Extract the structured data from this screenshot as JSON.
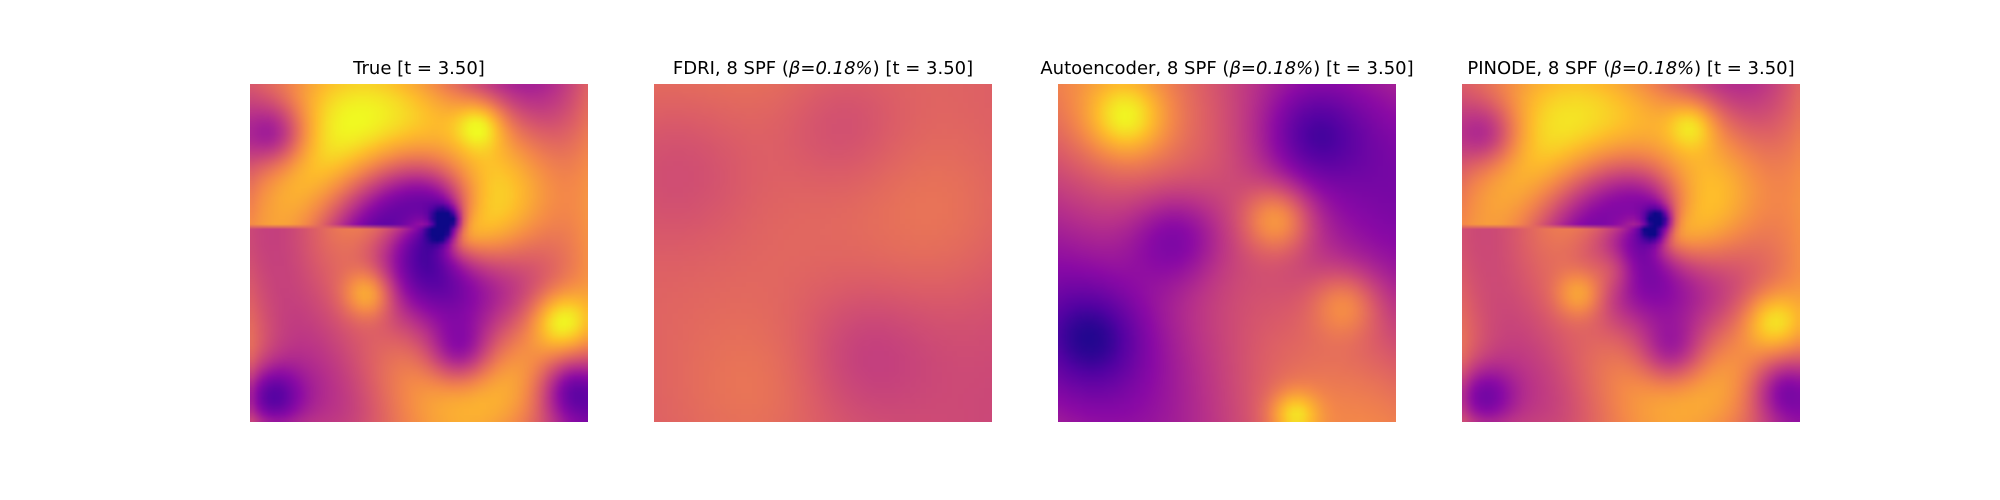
{
  "colormap": "plasma",
  "panels": [
    {
      "title_prefix": "True [t = 3.50]",
      "beta_text": "",
      "title_suffix": "",
      "field": "true"
    },
    {
      "title_prefix": "FDRI, 8 SPF (",
      "beta_text": "β=0.18%",
      "title_suffix": ") [t = 3.50]",
      "field": "fdri"
    },
    {
      "title_prefix": "Autoencoder, 8 SPF (",
      "beta_text": "β=0.18%",
      "title_suffix": ") [t = 3.50]",
      "field": "autoencoder"
    },
    {
      "title_prefix": "PINODE, 8 SPF (",
      "beta_text": "β=0.18%",
      "title_suffix": ") [t = 3.50]",
      "field": "pinode"
    }
  ]
}
